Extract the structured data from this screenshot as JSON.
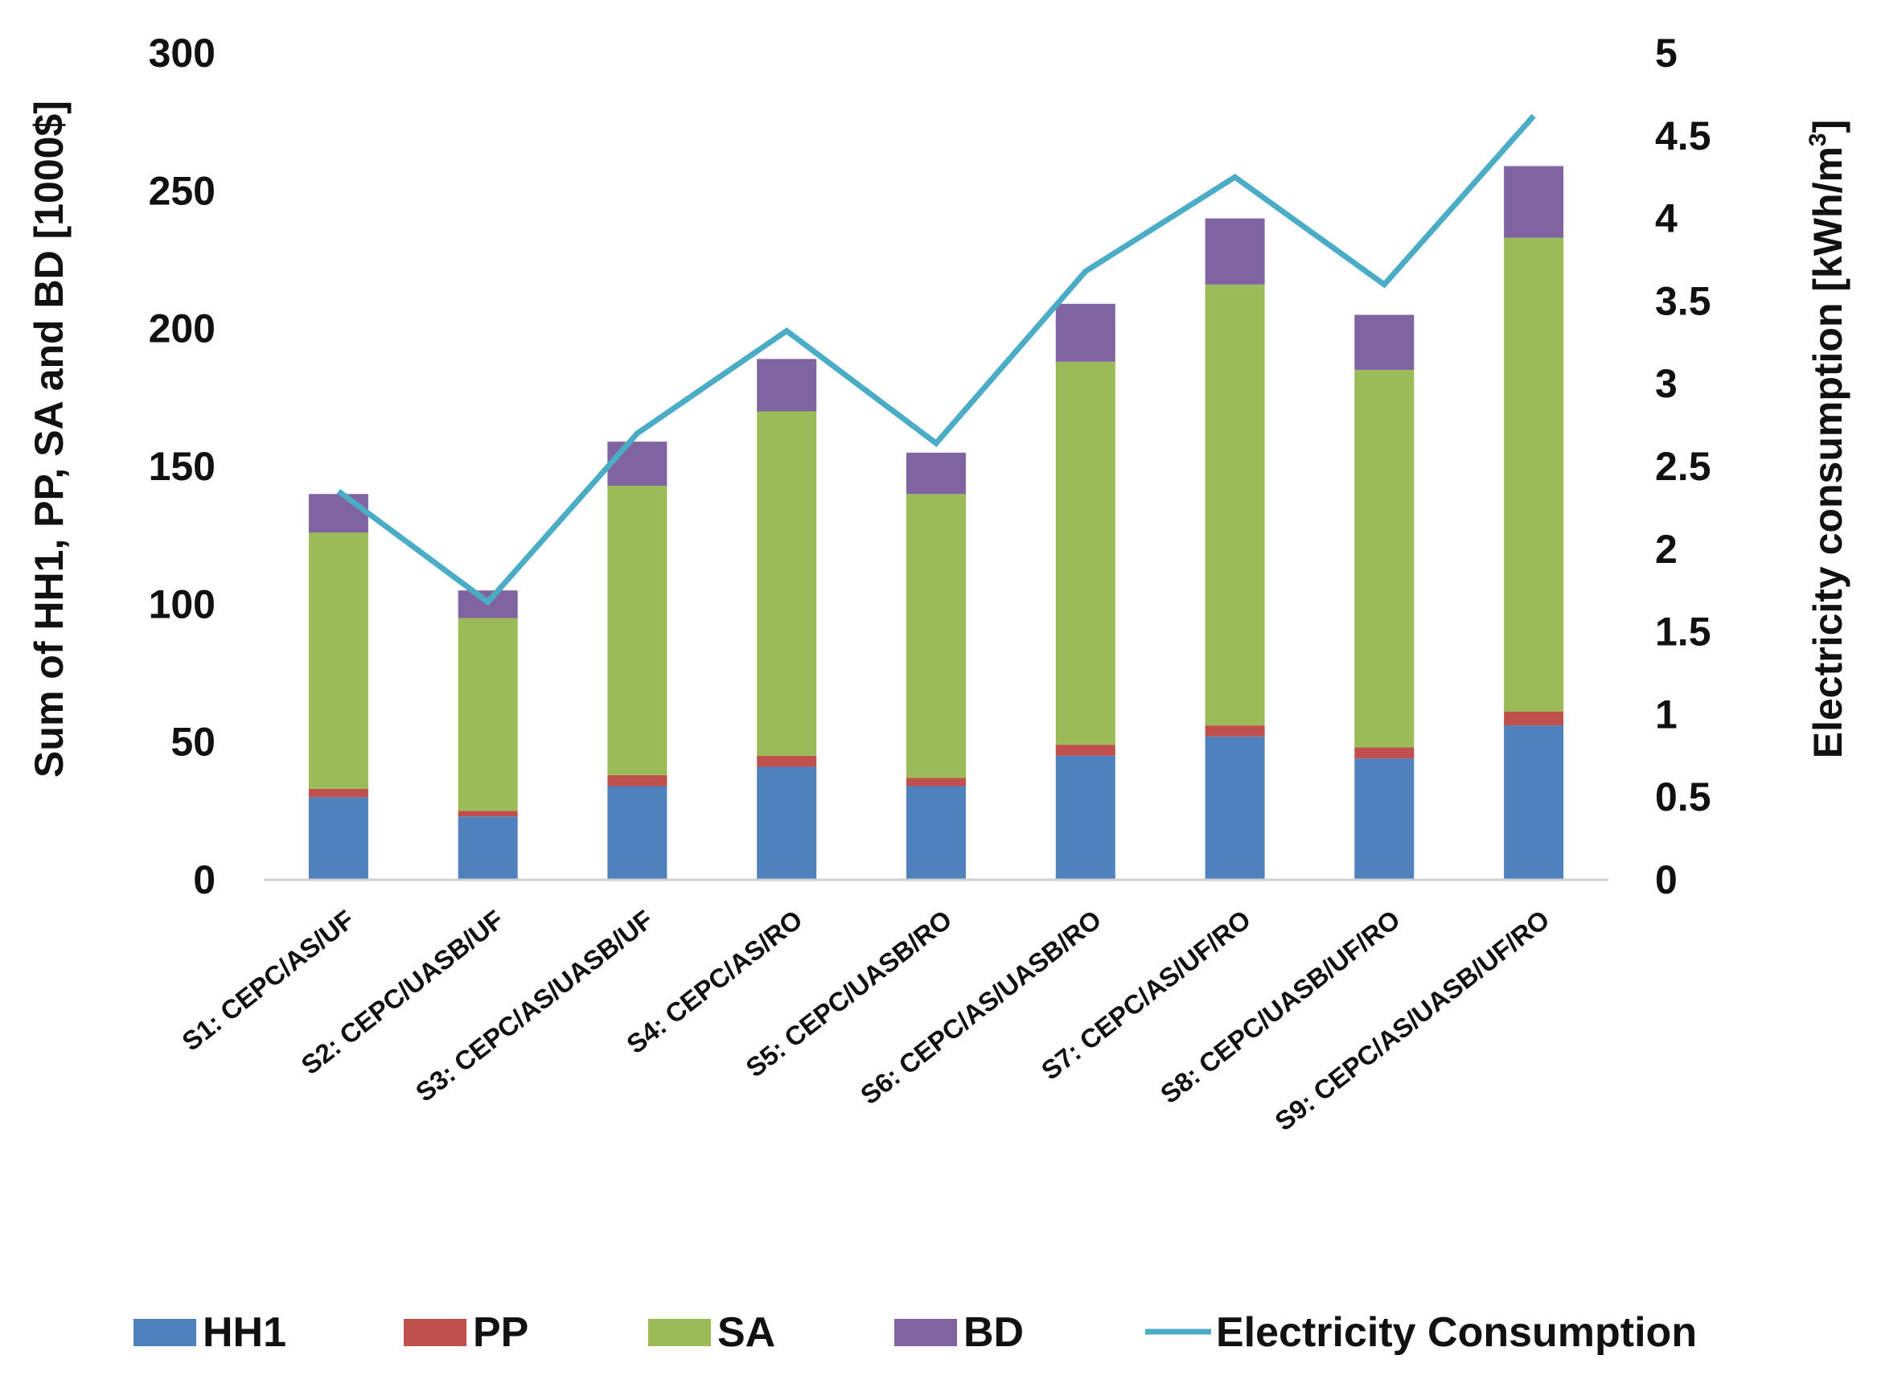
{
  "chart_data": {
    "type": "bar",
    "stacked": true,
    "title": "",
    "categories": [
      "S1: CEPC/AS/UF",
      "S2: CEPC/UASB/UF",
      "S3: CEPC/AS/UASB/UF",
      "S4: CEPC/AS/RO",
      "S5: CEPC/UASB/RO",
      "S6: CEPC/AS/UASB/RO",
      "S7: CEPC/AS/UF/RO",
      "S8: CEPC/UASB/UF/RO",
      "S9: CEPC/AS/UASB/UF/RO"
    ],
    "series": [
      {
        "name": "HH1",
        "color": "#4F81BD",
        "values": [
          30,
          23,
          34,
          41,
          34,
          45,
          52,
          44,
          56
        ]
      },
      {
        "name": "PP",
        "color": "#C0504D",
        "values": [
          3,
          2,
          4,
          4,
          3,
          4,
          4,
          4,
          5
        ]
      },
      {
        "name": "SA",
        "color": "#9BBB59",
        "values": [
          93,
          70,
          105,
          125,
          103,
          139,
          160,
          137,
          172
        ]
      },
      {
        "name": "BD",
        "color": "#8064A2",
        "values": [
          14,
          10,
          16,
          19,
          15,
          21,
          24,
          20,
          26
        ]
      }
    ],
    "line_series": {
      "name": "Electricity Consumption",
      "color": "#4BACC6",
      "axis": "right",
      "values": [
        2.35,
        1.68,
        2.7,
        3.32,
        2.64,
        3.68,
        4.25,
        3.6,
        4.62
      ]
    },
    "ylabel": "Sum of HH1, PP, SA and BD [1000$]",
    "ylabel_right_prefix": "Electricity consumption [kWh/m",
    "ylabel_right_superscript": "3",
    "ylabel_right_suffix": "]",
    "ylim": [
      0,
      300
    ],
    "yticks": [
      "0",
      "50",
      "100",
      "150",
      "200",
      "250",
      "300"
    ],
    "ylim_right": [
      0,
      5
    ],
    "yticks_right": [
      "0",
      "0.5",
      "1",
      "1.5",
      "2",
      "2.5",
      "3",
      "3.5",
      "4",
      "4.5",
      "5"
    ],
    "grid": false,
    "legend_position": "bottom"
  }
}
